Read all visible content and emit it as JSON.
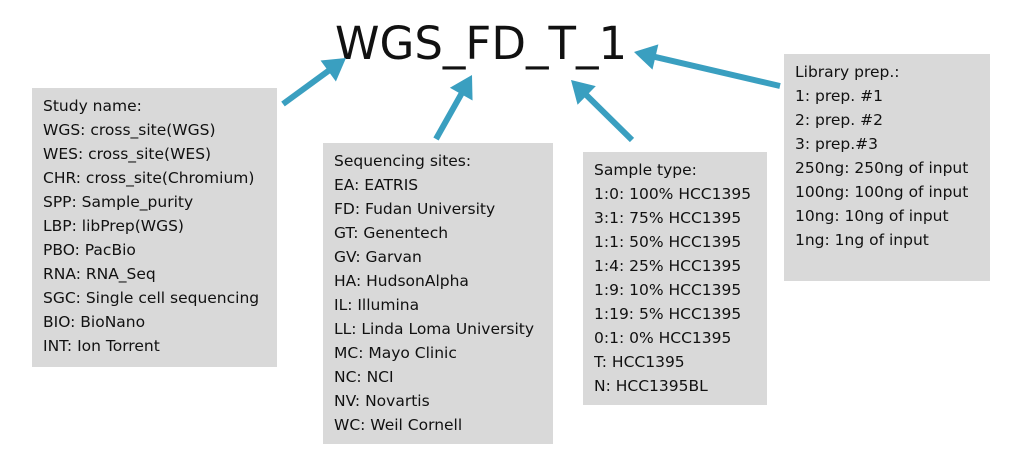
{
  "title": "WGS_FD_T_1",
  "colors": {
    "arrow": "#3a9fc0",
    "box": "#d9d9d9",
    "text": "#111111"
  },
  "study": {
    "heading": "Study name:",
    "items": [
      "WGS: cross_site(WGS)",
      "WES: cross_site(WES)",
      "CHR: cross_site(Chromium)",
      "SPP: Sample_purity",
      "LBP: libPrep(WGS)",
      "PBO: PacBio",
      "RNA: RNA_Seq",
      "SGC: Single cell sequencing",
      "BIO: BioNano",
      "INT: Ion Torrent"
    ]
  },
  "sites": {
    "heading": "Sequencing sites:",
    "items": [
      "EA: EATRIS",
      "FD: Fudan University",
      "GT: Genentech",
      "GV: Garvan",
      "HA: HudsonAlpha",
      "IL: Illumina",
      "LL: Linda Loma University",
      "MC: Mayo Clinic",
      "NC: NCI",
      "NV: Novartis",
      "WC: Weil Cornell"
    ]
  },
  "sample": {
    "heading": "Sample type:",
    "items": [
      "1:0: 100% HCC1395",
      "3:1: 75% HCC1395",
      "1:1: 50% HCC1395",
      "1:4: 25% HCC1395",
      "1:9: 10% HCC1395",
      "1:19: 5% HCC1395",
      "0:1: 0% HCC1395",
      "T: HCC1395",
      "N: HCC1395BL"
    ]
  },
  "library": {
    "heading": "Library prep.:",
    "items": [
      "1: prep. #1",
      "2: prep. #2",
      "3: prep.#3",
      "250ng: 250ng of input",
      "100ng: 100ng of input",
      "10ng: 10ng of input",
      "1ng: 1ng of input"
    ]
  }
}
